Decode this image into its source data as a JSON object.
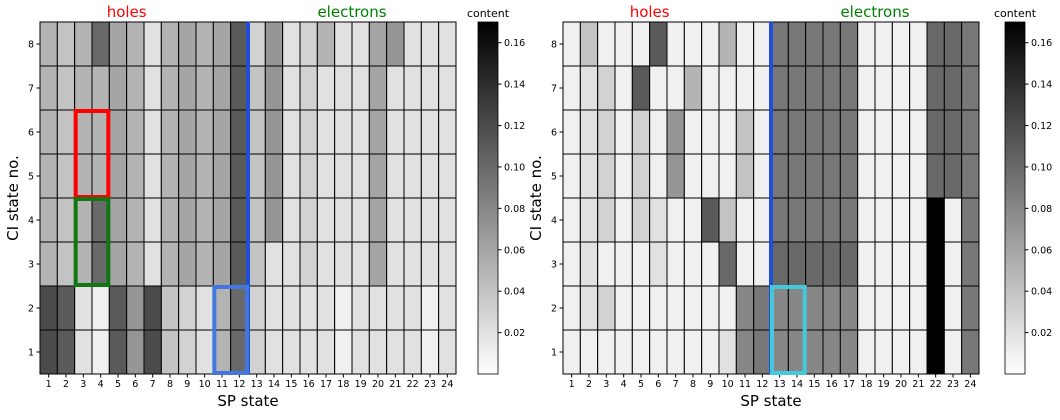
{
  "colormap": "gray_r",
  "panel_label_colors": {
    "holes": "#ff0000",
    "electrons": "#008000"
  },
  "chart_data": [
    {
      "type": "heatmap",
      "title": "",
      "xlabel": "SP state",
      "ylabel": "CI state no.",
      "colorbar_label": "content",
      "colorbar_ticks": [
        "0.02",
        "0.04",
        "0.06",
        "0.08",
        "0.10",
        "0.12",
        "0.14",
        "0.16"
      ],
      "value_range": [
        0,
        0.17
      ],
      "grid": true,
      "x_ticks": [
        "1",
        "2",
        "3",
        "4",
        "5",
        "6",
        "7",
        "8",
        "9",
        "10",
        "11",
        "12",
        "13",
        "14",
        "15",
        "16",
        "17",
        "18",
        "19",
        "20",
        "21",
        "22",
        "23",
        "24"
      ],
      "y_ticks": [
        "1",
        "2",
        "3",
        "4",
        "5",
        "6",
        "7",
        "8"
      ],
      "region_labels": [
        {
          "text": "holes",
          "color": "#ff0000",
          "center_x": 5.5
        },
        {
          "text": "electrons",
          "color": "#008000",
          "center_x": 18.5
        }
      ],
      "divider": {
        "x": 12.5,
        "color": "#1f4fd6"
      },
      "highlights": [
        {
          "x_from": 3,
          "x_to": 4,
          "y_from": 5,
          "y_to": 6,
          "color": "#ff0000"
        },
        {
          "x_from": 3,
          "x_to": 4,
          "y_from": 3,
          "y_to": 4,
          "color": "#117711"
        },
        {
          "x_from": 11,
          "x_to": 12,
          "y_from": 1,
          "y_to": 2,
          "color": "#4477dd"
        }
      ],
      "values": [
        [
          0.12,
          0.11,
          0.02,
          0.01,
          0.11,
          0.07,
          0.12,
          0.04,
          0.03,
          0.02,
          0.05,
          0.1,
          0.03,
          0.02,
          0.02,
          0.02,
          0.02,
          0.01,
          0.02,
          0.02,
          0.02,
          0.02,
          0.01,
          0.02
        ],
        [
          0.12,
          0.11,
          0.02,
          0.01,
          0.11,
          0.07,
          0.12,
          0.04,
          0.03,
          0.02,
          0.05,
          0.1,
          0.03,
          0.02,
          0.02,
          0.02,
          0.02,
          0.01,
          0.02,
          0.02,
          0.02,
          0.02,
          0.01,
          0.02
        ],
        [
          0.05,
          0.04,
          0.05,
          0.1,
          0.06,
          0.05,
          0.02,
          0.05,
          0.06,
          0.05,
          0.06,
          0.11,
          0.04,
          0.02,
          0.02,
          0.03,
          0.02,
          0.02,
          0.02,
          0.06,
          0.02,
          0.02,
          0.02,
          0.02
        ],
        [
          0.05,
          0.04,
          0.05,
          0.1,
          0.06,
          0.05,
          0.02,
          0.05,
          0.06,
          0.05,
          0.06,
          0.11,
          0.04,
          0.07,
          0.02,
          0.03,
          0.02,
          0.02,
          0.02,
          0.06,
          0.02,
          0.02,
          0.02,
          0.02
        ],
        [
          0.05,
          0.04,
          0.05,
          0.05,
          0.06,
          0.05,
          0.02,
          0.05,
          0.06,
          0.05,
          0.06,
          0.11,
          0.04,
          0.07,
          0.02,
          0.03,
          0.02,
          0.02,
          0.02,
          0.06,
          0.02,
          0.02,
          0.02,
          0.02
        ],
        [
          0.05,
          0.04,
          0.05,
          0.05,
          0.06,
          0.05,
          0.02,
          0.05,
          0.06,
          0.05,
          0.06,
          0.11,
          0.04,
          0.07,
          0.02,
          0.03,
          0.02,
          0.02,
          0.02,
          0.06,
          0.02,
          0.02,
          0.02,
          0.02
        ],
        [
          0.05,
          0.04,
          0.05,
          0.05,
          0.06,
          0.05,
          0.02,
          0.05,
          0.06,
          0.05,
          0.06,
          0.11,
          0.04,
          0.07,
          0.02,
          0.03,
          0.02,
          0.02,
          0.02,
          0.06,
          0.02,
          0.02,
          0.02,
          0.02
        ],
        [
          0.05,
          0.04,
          0.05,
          0.1,
          0.06,
          0.05,
          0.02,
          0.05,
          0.06,
          0.05,
          0.06,
          0.11,
          0.03,
          0.07,
          0.02,
          0.03,
          0.05,
          0.02,
          0.02,
          0.06,
          0.07,
          0.02,
          0.02,
          0.02
        ]
      ]
    },
    {
      "type": "heatmap",
      "title": "",
      "xlabel": "SP state",
      "ylabel": "CI state no.",
      "colorbar_label": "content",
      "colorbar_ticks": [
        "0.02",
        "0.04",
        "0.06",
        "0.08",
        "0.10",
        "0.12",
        "0.14",
        "0.16"
      ],
      "value_range": [
        0,
        0.17
      ],
      "grid": true,
      "x_ticks": [
        "1",
        "2",
        "3",
        "4",
        "5",
        "6",
        "7",
        "8",
        "9",
        "10",
        "11",
        "12",
        "13",
        "14",
        "15",
        "16",
        "17",
        "18",
        "19",
        "20",
        "21",
        "22",
        "23",
        "24"
      ],
      "y_ticks": [
        "1",
        "2",
        "3",
        "4",
        "5",
        "6",
        "7",
        "8"
      ],
      "region_labels": [
        {
          "text": "holes",
          "color": "#ff0000",
          "center_x": 5.5
        },
        {
          "text": "electrons",
          "color": "#008000",
          "center_x": 18.5
        }
      ],
      "divider": {
        "x": 12.5,
        "color": "#1f4fd6"
      },
      "highlights": [
        {
          "x_from": 13,
          "x_to": 14,
          "y_from": 1,
          "y_to": 2,
          "color": "#44c8dc"
        }
      ],
      "values": [
        [
          0.01,
          0.01,
          0.01,
          0.01,
          0.01,
          0.01,
          0.01,
          0.01,
          0.01,
          0.02,
          0.08,
          0.09,
          0.08,
          0.08,
          0.08,
          0.08,
          0.08,
          0.01,
          0.01,
          0.01,
          0.01,
          0.17,
          0.01,
          0.09
        ],
        [
          0.01,
          0.02,
          0.03,
          0.01,
          0.01,
          0.01,
          0.01,
          0.01,
          0.01,
          0.01,
          0.08,
          0.09,
          0.08,
          0.08,
          0.08,
          0.08,
          0.08,
          0.01,
          0.01,
          0.01,
          0.01,
          0.17,
          0.01,
          0.09
        ],
        [
          0.01,
          0.02,
          0.01,
          0.01,
          0.01,
          0.02,
          0.01,
          0.01,
          0.01,
          0.1,
          0.01,
          0.01,
          0.1,
          0.1,
          0.1,
          0.1,
          0.1,
          0.01,
          0.01,
          0.01,
          0.01,
          0.17,
          0.01,
          0.09
        ],
        [
          0.01,
          0.02,
          0.03,
          0.01,
          0.03,
          0.02,
          0.01,
          0.01,
          0.11,
          0.04,
          0.01,
          0.01,
          0.09,
          0.09,
          0.09,
          0.09,
          0.09,
          0.01,
          0.01,
          0.01,
          0.01,
          0.17,
          0.01,
          0.09
        ],
        [
          0.01,
          0.02,
          0.03,
          0.01,
          0.03,
          0.01,
          0.07,
          0.01,
          0.01,
          0.01,
          0.04,
          0.01,
          0.09,
          0.09,
          0.09,
          0.09,
          0.09,
          0.01,
          0.01,
          0.01,
          0.01,
          0.1,
          0.1,
          0.09
        ],
        [
          0.01,
          0.02,
          0.03,
          0.01,
          0.03,
          0.01,
          0.07,
          0.01,
          0.01,
          0.01,
          0.04,
          0.01,
          0.09,
          0.09,
          0.09,
          0.09,
          0.09,
          0.01,
          0.01,
          0.01,
          0.01,
          0.1,
          0.1,
          0.09
        ],
        [
          0.01,
          0.02,
          0.03,
          0.01,
          0.11,
          0.01,
          0.01,
          0.05,
          0.01,
          0.01,
          0.01,
          0.01,
          0.09,
          0.09,
          0.09,
          0.09,
          0.09,
          0.01,
          0.01,
          0.01,
          0.01,
          0.1,
          0.1,
          0.09
        ],
        [
          0.01,
          0.04,
          0.01,
          0.01,
          0.01,
          0.11,
          0.01,
          0.01,
          0.01,
          0.05,
          0.01,
          0.01,
          0.09,
          0.09,
          0.09,
          0.09,
          0.09,
          0.01,
          0.01,
          0.01,
          0.01,
          0.1,
          0.1,
          0.09
        ]
      ]
    }
  ]
}
